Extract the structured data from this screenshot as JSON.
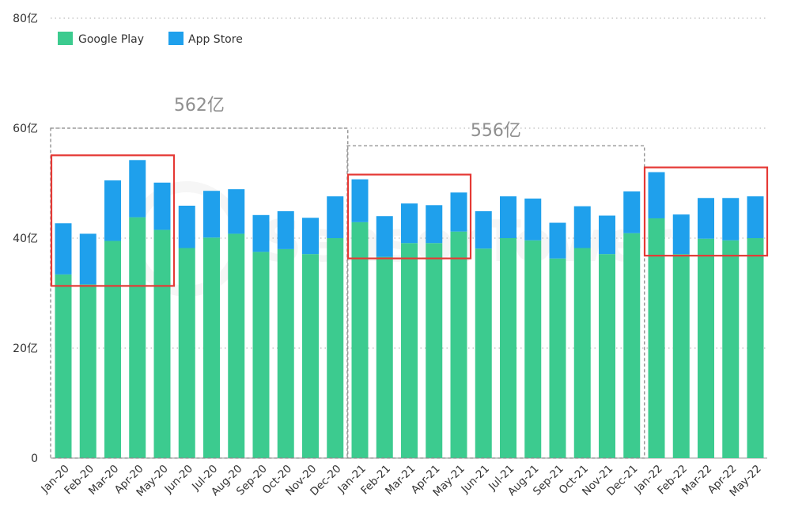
{
  "chart_data": {
    "type": "bar",
    "stacked": true,
    "y_unit_suffix": "亿",
    "ylim": [
      0,
      80
    ],
    "yticks": [
      0,
      20,
      40,
      60,
      80
    ],
    "ytick_labels": [
      "0",
      "20亿",
      "40亿",
      "60亿",
      "80亿"
    ],
    "grid": "horizontal-dotted",
    "legend_position": "top-left",
    "categories": [
      "Jan-20",
      "Feb-20",
      "Mar-20",
      "Apr-20",
      "May-20",
      "Jun-20",
      "Jul-20",
      "Aug-20",
      "Sep-20",
      "Oct-20",
      "Nov-20",
      "Dec-20",
      "Jan-21",
      "Feb-21",
      "Mar-21",
      "Apr-21",
      "May-21",
      "Jun-21",
      "Jul-21",
      "Aug-21",
      "Sep-21",
      "Oct-21",
      "Nov-21",
      "Dec-21",
      "Jan-22",
      "Feb-22",
      "Mar-22",
      "Apr-22",
      "May-22"
    ],
    "series": [
      {
        "name": "Google Play",
        "color": "#3CCB8F",
        "values": [
          33.4,
          31.6,
          39.5,
          43.8,
          41.5,
          38.2,
          40.1,
          40.8,
          37.5,
          38.0,
          37.1,
          40.0,
          42.9,
          36.6,
          39.1,
          39.1,
          41.2,
          38.1,
          40.0,
          39.6,
          36.3,
          38.2,
          37.1,
          40.9,
          43.6,
          37.1,
          39.9,
          39.6,
          40.0
        ]
      },
      {
        "name": "App Store",
        "color": "#1FA0EC",
        "values": [
          9.3,
          9.2,
          11.0,
          10.4,
          8.6,
          7.7,
          8.5,
          8.1,
          6.7,
          6.9,
          6.6,
          7.6,
          7.8,
          7.4,
          7.2,
          6.9,
          7.1,
          6.8,
          7.6,
          7.6,
          6.5,
          7.6,
          7.0,
          7.6,
          8.4,
          7.2,
          7.4,
          7.7,
          7.6
        ]
      }
    ],
    "group_annotations": [
      {
        "label": "562亿",
        "start": 0,
        "end": 11
      },
      {
        "label": "556亿",
        "start": 12,
        "end": 23
      }
    ],
    "highlights": [
      {
        "start": 0,
        "end": 4
      },
      {
        "start": 12,
        "end": 16
      },
      {
        "start": 24,
        "end": 28
      }
    ],
    "watermark": "SensorTower",
    "highlight_color": "#E53935"
  }
}
